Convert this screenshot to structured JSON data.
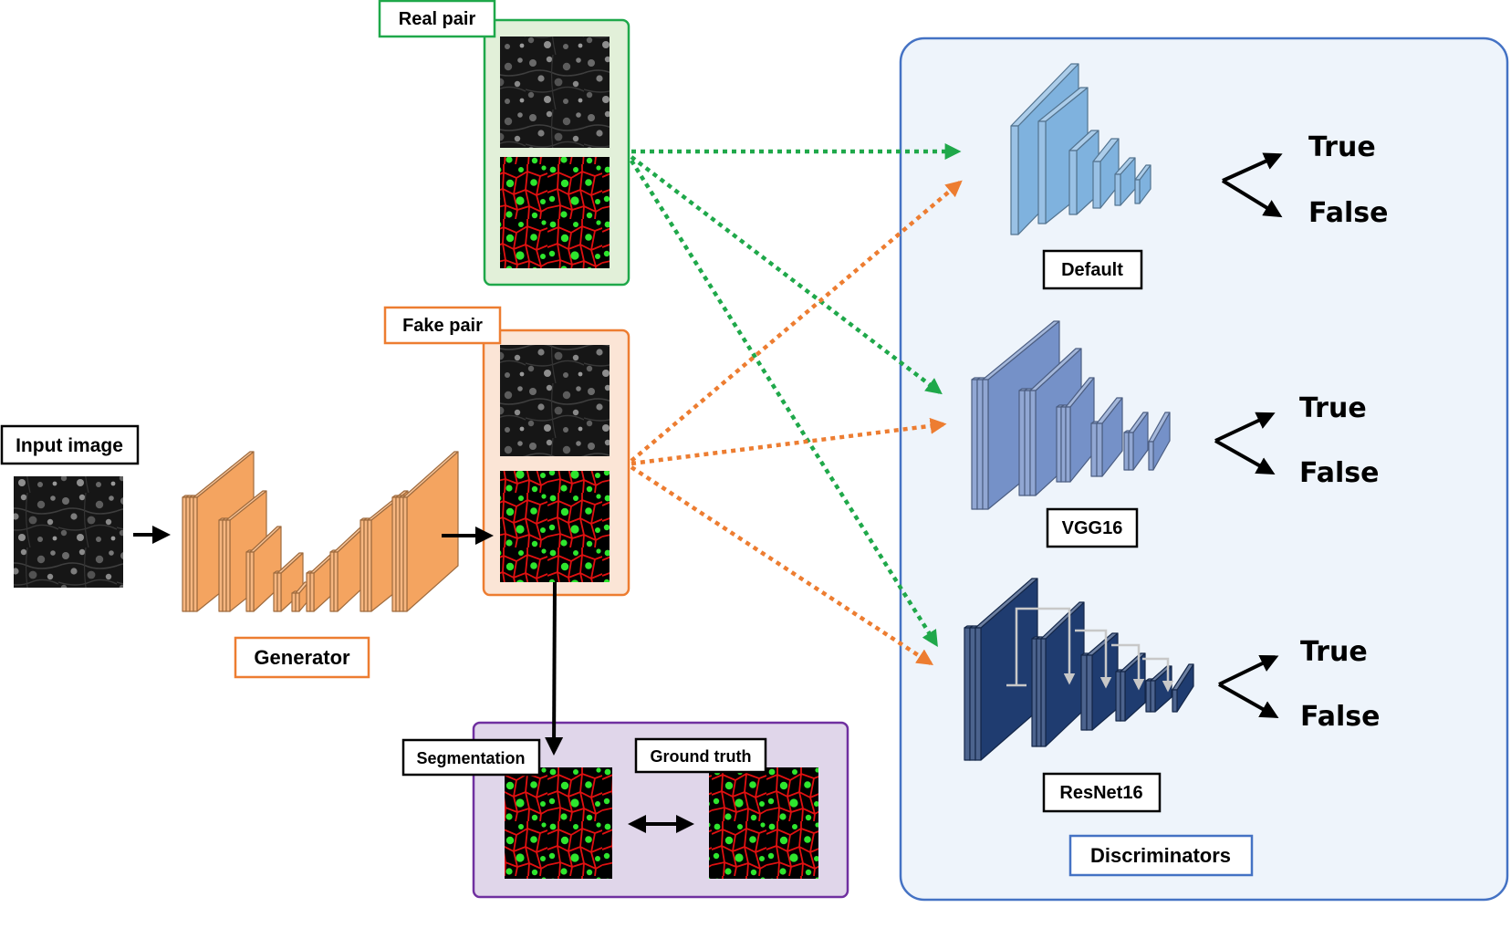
{
  "labels": {
    "input_image": "Input image",
    "generator": "Generator",
    "real_pair": "Real pair",
    "fake_pair": "Fake pair",
    "segmentation": "Segmentation",
    "ground_truth": "Ground truth",
    "discriminators": "Discriminators"
  },
  "discriminators": [
    {
      "name": "Default",
      "outputs": [
        "True",
        "False"
      ]
    },
    {
      "name": "VGG16",
      "outputs": [
        "True",
        "False"
      ]
    },
    {
      "name": "ResNet16",
      "outputs": [
        "True",
        "False"
      ]
    }
  ],
  "colors": {
    "real": "#1fa84a",
    "real_fill": "#e2f0d9",
    "fake": "#ed7d31",
    "fake_fill": "#fbe5d6",
    "eval_border": "#7030a0",
    "eval_fill": "#e0d6ea",
    "disc_border": "#4472c4",
    "disc_fill": "#eef4fb",
    "generator": "#f4a460",
    "default_net": "#7fb2de",
    "vgg_net": "#7591c8",
    "resnet_net": "#1f3c70",
    "cells_bg": "#000000",
    "cells_membrane": "#e01010",
    "cells_nuclei": "#2ee62e"
  },
  "icons": [
    "grayscale-microscopy-image",
    "segmentation-map-image"
  ]
}
